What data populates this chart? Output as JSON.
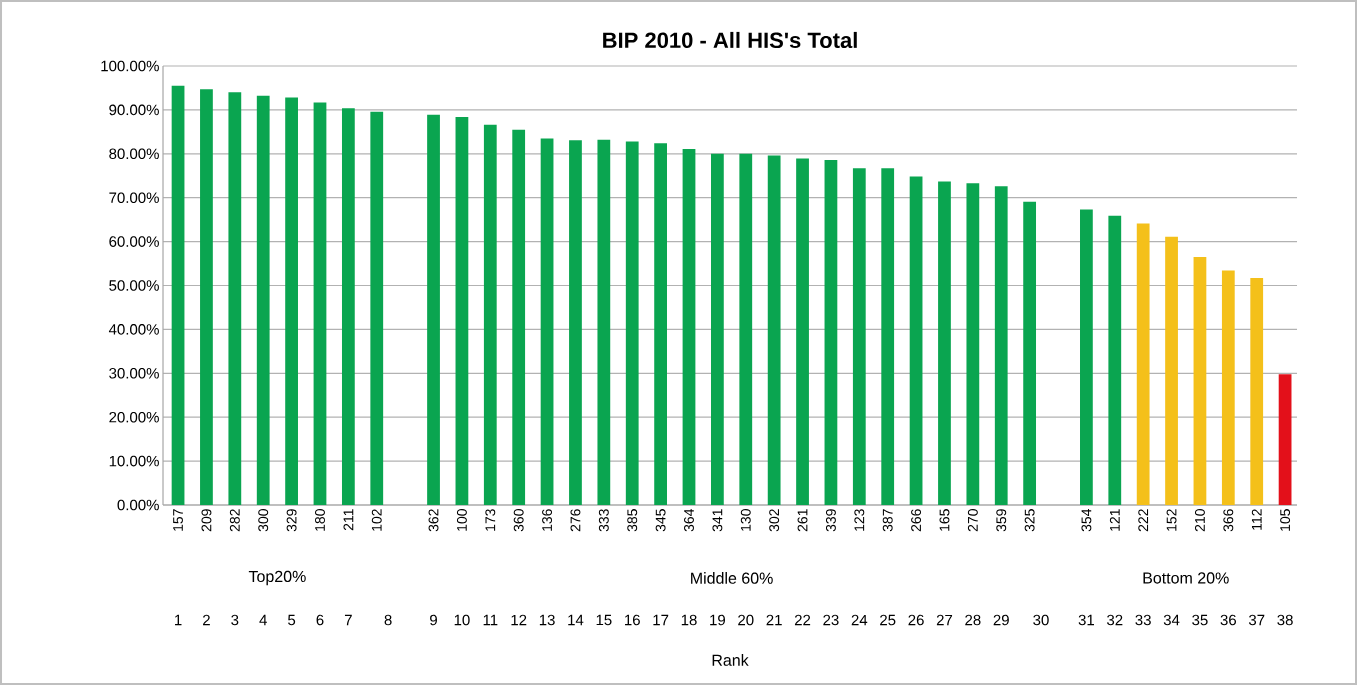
{
  "chart_data": {
    "type": "bar",
    "title": "BIP 2010 - All HIS's Total",
    "categories": [
      "157",
      "209",
      "282",
      "300",
      "329",
      "180",
      "211",
      "102",
      null,
      "362",
      "100",
      "173",
      "360",
      "136",
      "276",
      "333",
      "385",
      "345",
      "364",
      "341",
      "130",
      "302",
      "261",
      "339",
      "123",
      "387",
      "266",
      "165",
      "270",
      "359",
      "325",
      null,
      "354",
      "121",
      "222",
      "152",
      "210",
      "366",
      "112",
      "105"
    ],
    "values": [
      95.5,
      94.7,
      94.0,
      93.2,
      92.8,
      91.7,
      90.4,
      89.6,
      null,
      88.9,
      88.4,
      86.6,
      85.5,
      83.5,
      83.1,
      83.2,
      82.8,
      82.4,
      81.1,
      80.0,
      80.0,
      79.6,
      78.9,
      78.6,
      76.7,
      76.7,
      74.8,
      73.7,
      73.3,
      72.6,
      69.1,
      null,
      67.3,
      65.9,
      64.1,
      61.1,
      56.5,
      53.4,
      51.7,
      29.8
    ],
    "colors": [
      "#0aa550",
      "#0aa550",
      "#0aa550",
      "#0aa550",
      "#0aa550",
      "#0aa550",
      "#0aa550",
      "#0aa550",
      null,
      "#0aa550",
      "#0aa550",
      "#0aa550",
      "#0aa550",
      "#0aa550",
      "#0aa550",
      "#0aa550",
      "#0aa550",
      "#0aa550",
      "#0aa550",
      "#0aa550",
      "#0aa550",
      "#0aa550",
      "#0aa550",
      "#0aa550",
      "#0aa550",
      "#0aa550",
      "#0aa550",
      "#0aa550",
      "#0aa550",
      "#0aa550",
      "#0aa550",
      null,
      "#0aa550",
      "#0aa550",
      "#f4c01a",
      "#f4c01a",
      "#f4c01a",
      "#f4c01a",
      "#f4c01a",
      "#e3101a"
    ],
    "ylim": [
      0,
      100
    ],
    "yticks": [
      {
        "value": 0,
        "label": "0.00%"
      },
      {
        "value": 10,
        "label": "10.00%"
      },
      {
        "value": 20,
        "label": "20.00%"
      },
      {
        "value": 30,
        "label": "30.00%"
      },
      {
        "value": 40,
        "label": "40.00%"
      },
      {
        "value": 50,
        "label": "50.00%"
      },
      {
        "value": 60,
        "label": "60.00%"
      },
      {
        "value": 70,
        "label": "70.00%"
      },
      {
        "value": 80,
        "label": "80.00%"
      },
      {
        "value": 90,
        "label": "90.00%"
      },
      {
        "value": 100,
        "label": "100.00%"
      }
    ],
    "grid": "y",
    "annotations": [
      "Top20%",
      "Middle 60%",
      "Bottom 20%",
      "1",
      "2",
      "3",
      "4",
      "5",
      "6",
      "7",
      "8",
      "9",
      "10",
      "11",
      "12",
      "13",
      "14",
      "15",
      "16",
      "17",
      "18",
      "19",
      "20",
      "21",
      "22",
      "23",
      "24",
      "25",
      "26",
      "27",
      "28",
      "29",
      "30",
      "31",
      "32",
      "33",
      "34",
      "35",
      "36",
      "37",
      "38",
      "Rank"
    ]
  }
}
